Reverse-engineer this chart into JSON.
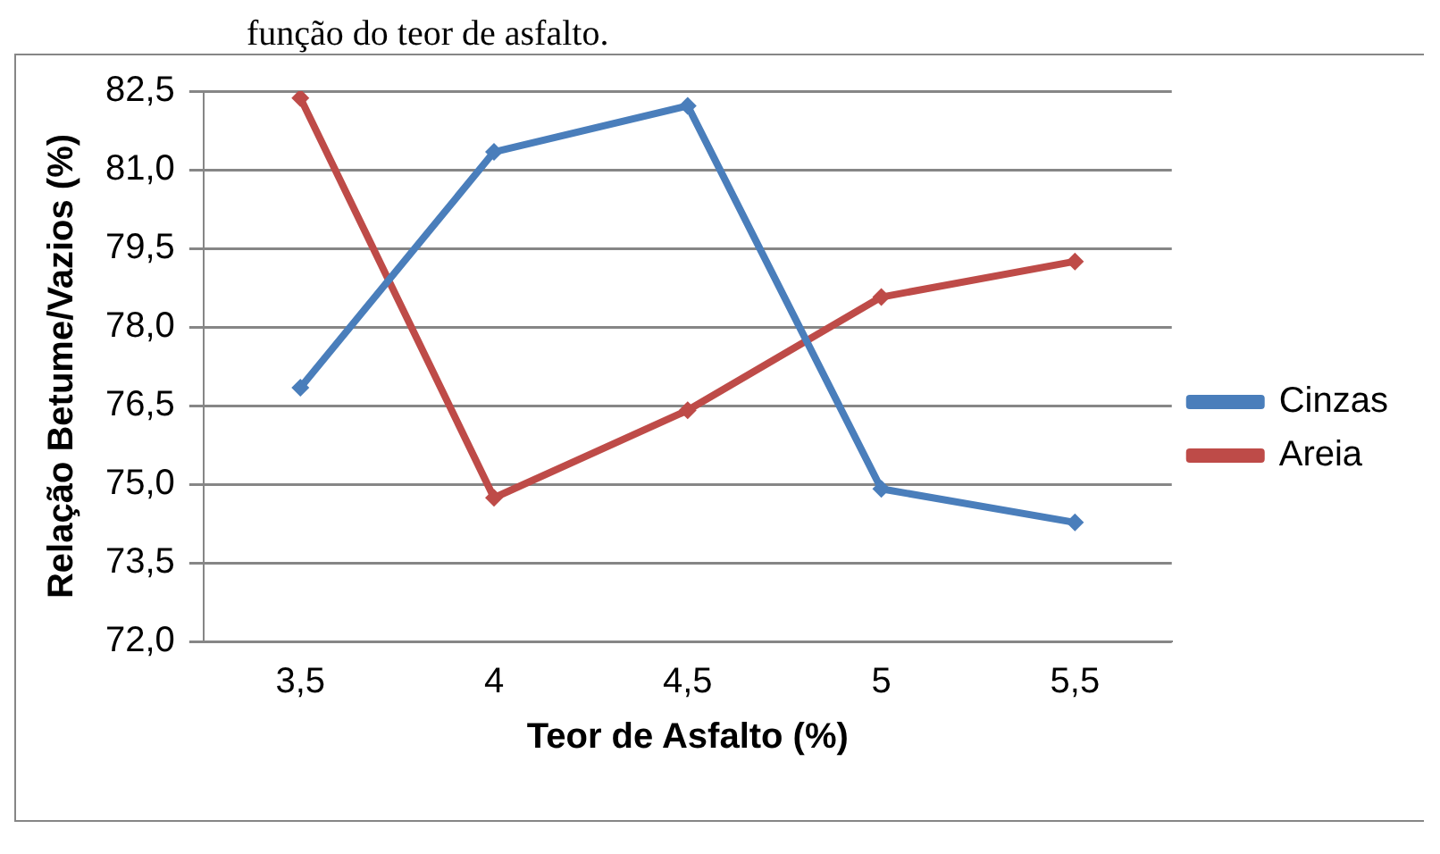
{
  "chart_data": {
    "type": "line",
    "annotations": [
      "função do teor de asfalto."
    ],
    "xlabel": "Teor de Asfalto (%)",
    "ylabel": "Relação Betume/Vazios (%)",
    "categories": [
      "3,5",
      "4",
      "4,5",
      "5",
      "5,5"
    ],
    "series": [
      {
        "name": "Cinzas",
        "color": "#4a7ebb",
        "values": [
          76.84,
          81.34,
          82.22,
          74.91,
          74.27
        ]
      },
      {
        "name": "Areia",
        "color": "#be4b48",
        "values": [
          82.37,
          74.74,
          76.41,
          78.57,
          79.25
        ]
      }
    ],
    "ylim": [
      72,
      82.5
    ],
    "yticks": [
      {
        "value": 72,
        "label": "72,0"
      },
      {
        "value": 73.5,
        "label": "73,5"
      },
      {
        "value": 75,
        "label": "75,0"
      },
      {
        "value": 76.5,
        "label": "76,5"
      },
      {
        "value": 78,
        "label": "78,0"
      },
      {
        "value": 79.5,
        "label": "79,5"
      },
      {
        "value": 81,
        "label": "81,0"
      },
      {
        "value": 82.5,
        "label": "82,5"
      }
    ],
    "grid": "y",
    "legend": "right",
    "marker": "diamond",
    "line_style": "solid"
  }
}
